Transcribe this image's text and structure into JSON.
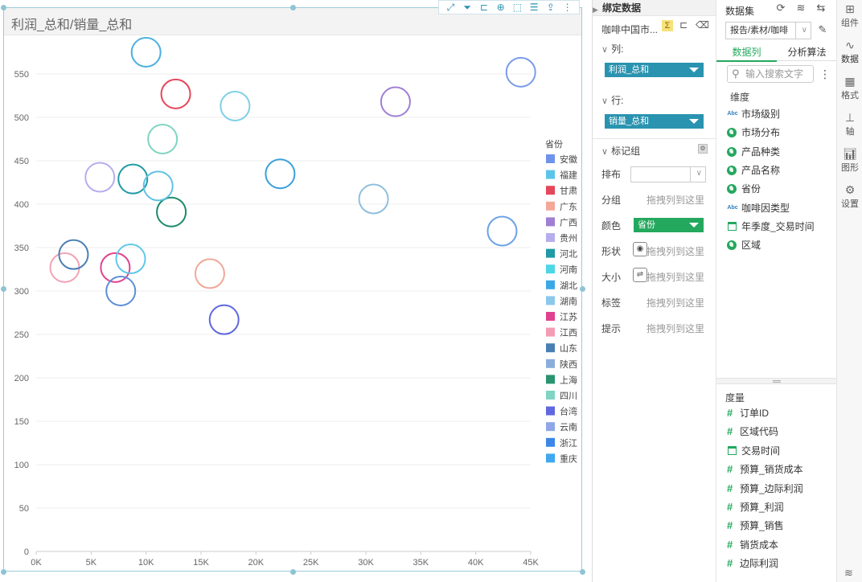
{
  "chart": {
    "title": "利润_总和/销量_总和",
    "toolbar_icons": [
      "expand-icon",
      "filter-icon",
      "drill-icon",
      "zoom-icon",
      "select-icon",
      "list-icon",
      "export-icon",
      "more-icon"
    ]
  },
  "chart_data": {
    "type": "scatter",
    "xlabel": "",
    "ylabel": "",
    "xlim": [
      0,
      45000
    ],
    "ylim": [
      0,
      550
    ],
    "x_ticks": [
      "0K",
      "5K",
      "10K",
      "15K",
      "20K",
      "25K",
      "30K",
      "35K",
      "40K",
      "45K"
    ],
    "y_ticks": [
      "0",
      "50",
      "100",
      "150",
      "200",
      "250",
      "300",
      "350",
      "400",
      "450",
      "500",
      "550"
    ],
    "legend_title": "省份",
    "legend_position": "right",
    "points": [
      {
        "name": "安徽",
        "x": 44100,
        "y": 552,
        "color": "#7b9bea"
      },
      {
        "name": "福建",
        "x": 10000,
        "y": 575,
        "color": "#4bb0e0"
      },
      {
        "name": "甘肃",
        "x": 12700,
        "y": 527,
        "color": "#e5475a"
      },
      {
        "name": "广东",
        "x": 15800,
        "y": 320,
        "color": "#f0a898"
      },
      {
        "name": "广西",
        "x": 32700,
        "y": 518,
        "color": "#9f7fd4"
      },
      {
        "name": "贵州",
        "x": 5800,
        "y": 431,
        "color": "#b6aeec"
      },
      {
        "name": "河北",
        "x": 8800,
        "y": 429,
        "color": "#1f9aa6"
      },
      {
        "name": "河南",
        "x": 18100,
        "y": 513,
        "color": "#7fd0e6"
      },
      {
        "name": "湖北",
        "x": 22200,
        "y": 435,
        "color": "#3ba0dc"
      },
      {
        "name": "湖南",
        "x": 30700,
        "y": 406,
        "color": "#8fbfdc"
      },
      {
        "name": "江苏",
        "x": 7200,
        "y": 327,
        "color": "#e0428f"
      },
      {
        "name": "江西",
        "x": 2600,
        "y": 327,
        "color": "#f2a2b6"
      },
      {
        "name": "山东",
        "x": 3400,
        "y": 342,
        "color": "#4a7fb4"
      },
      {
        "name": "陕西",
        "x": 42400,
        "y": 369,
        "color": "#6aa2e6"
      },
      {
        "name": "上海",
        "x": 12300,
        "y": 391,
        "color": "#1c8a6c"
      },
      {
        "name": "四川",
        "x": 11500,
        "y": 475,
        "color": "#7fd4c2"
      },
      {
        "name": "台湾",
        "x": 17100,
        "y": 267,
        "color": "#5f68df"
      },
      {
        "name": "云南",
        "x": 7700,
        "y": 300,
        "color": "#5e8fd8"
      },
      {
        "name": "浙江",
        "x": 8600,
        "y": 337,
        "color": "#60c8ea"
      },
      {
        "name": "重庆",
        "x": 11100,
        "y": 421,
        "color": "#5fc2e3"
      }
    ],
    "legend": [
      {
        "name": "安徽",
        "color": "#6f93ea"
      },
      {
        "name": "福建",
        "color": "#5bc4ea"
      },
      {
        "name": "甘肃",
        "color": "#e5475a"
      },
      {
        "name": "广东",
        "color": "#f4a898"
      },
      {
        "name": "广西",
        "color": "#9f7fd4"
      },
      {
        "name": "贵州",
        "color": "#b6aeec"
      },
      {
        "name": "河北",
        "color": "#1f9aa6"
      },
      {
        "name": "河南",
        "color": "#4ed6e6"
      },
      {
        "name": "湖北",
        "color": "#3ba8e6"
      },
      {
        "name": "湖南",
        "color": "#8cc8ec"
      },
      {
        "name": "江苏",
        "color": "#e0428f"
      },
      {
        "name": "江西",
        "color": "#f49cb4"
      },
      {
        "name": "山东",
        "color": "#4a7fb4"
      },
      {
        "name": "陕西",
        "color": "#8aaedb"
      },
      {
        "name": "上海",
        "color": "#2a9370"
      },
      {
        "name": "四川",
        "color": "#7fd4c2"
      },
      {
        "name": "台湾",
        "color": "#5f68df"
      },
      {
        "name": "云南",
        "color": "#8fa6e8"
      },
      {
        "name": "浙江",
        "color": "#3c86e8"
      },
      {
        "name": "重庆",
        "color": "#3fa8f0"
      }
    ]
  },
  "bind": {
    "header": "绑定数据",
    "dataset_short": "咖啡中国市...",
    "column_label": "列:",
    "column_field": "利润_总和",
    "row_label": "行:",
    "row_field": "销量_总和",
    "mark_group_label": "标记组",
    "layout_label": "排布",
    "group_label": "分组",
    "group_hint": "拖拽列到这里",
    "color_label": "颜色",
    "color_field": "省份",
    "shape_label": "形状",
    "shape_hint": "拖拽列到这里",
    "size_label": "大小",
    "size_hint": "拖拽列到这里",
    "tag_label": "标签",
    "tag_hint": "拖拽列到这里",
    "tip_label": "提示",
    "tip_hint": "拖拽列到这里"
  },
  "data": {
    "dataset_label": "数据集",
    "dataset_value": "报告/素材/咖啡",
    "tab_columns": "数据列",
    "tab_algorithms": "分析算法",
    "search_placeholder": "输入搜索文字",
    "dimension_label": "维度",
    "dimensions": [
      {
        "name": "市场级别",
        "icon": "abc-icon"
      },
      {
        "name": "市场分布",
        "icon": "globe-icon"
      },
      {
        "name": "产品种类",
        "icon": "globe-icon"
      },
      {
        "name": "产品名称",
        "icon": "globe-icon"
      },
      {
        "name": "省份",
        "icon": "globe-icon"
      },
      {
        "name": "咖啡因类型",
        "icon": "abc-icon"
      },
      {
        "name": "年季度_交易时间",
        "icon": "calendar-icon"
      },
      {
        "name": "区域",
        "icon": "globe-icon"
      }
    ],
    "measure_label": "度量",
    "measures": [
      {
        "name": "订单ID",
        "icon": "hash-icon"
      },
      {
        "name": "区域代码",
        "icon": "hash-icon"
      },
      {
        "name": "交易时间",
        "icon": "calendar-icon"
      },
      {
        "name": "预算_销货成本",
        "icon": "hash-icon"
      },
      {
        "name": "预算_边际利润",
        "icon": "hash-icon"
      },
      {
        "name": "预算_利润",
        "icon": "hash-icon"
      },
      {
        "name": "预算_销售",
        "icon": "hash-icon"
      },
      {
        "name": "销货成本",
        "icon": "hash-icon"
      },
      {
        "name": "边际利润",
        "icon": "hash-icon"
      }
    ]
  },
  "rail": {
    "components": "组件",
    "data": "数据",
    "format": "格式",
    "axis": "轴",
    "graphics": "图形",
    "settings": "设置"
  }
}
